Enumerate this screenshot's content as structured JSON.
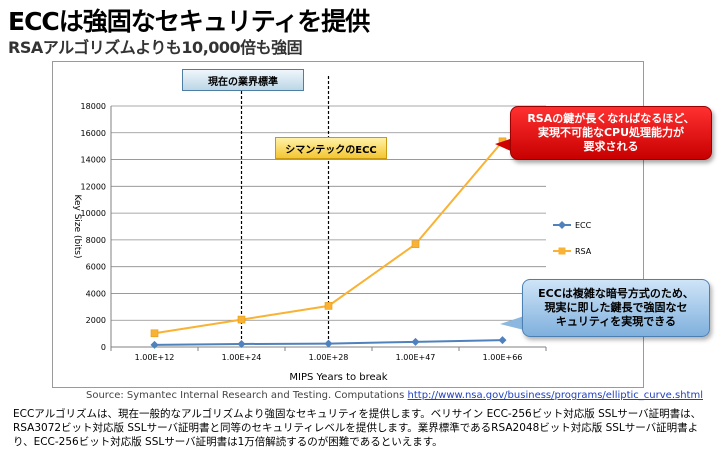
{
  "header": {
    "title": "ECCは強固なセキュリティを提供",
    "subtitle": "RSAアルゴリズムよりも10,000倍も強固"
  },
  "annotations": {
    "standard": "現在の業界標準",
    "symantec": "シマンテックのECC",
    "rsa_callout_line1": "RSAの鍵が長くなればなるほど、",
    "rsa_callout_line2": "実現不可能なCPU処理能力が",
    "rsa_callout_line3": "要求される",
    "ecc_callout_line1": "ECCは複雑な暗号方式のため、",
    "ecc_callout_line2": "現実に即した鍵長で強固なセ",
    "ecc_callout_line3": "キュリティを実現できる"
  },
  "source": {
    "prefix": "Source:  Symantec Internal Research and Testing.  Computations ",
    "link": "http://www.nsa.gov/business/programs/elliptic_curve.shtml"
  },
  "description": "ECCアルゴリズムは、現在一般的なアルゴリズムより強固なセキュリティを提供します。ベリサイン ECC-256ビット対応版  SSLサーバ証明書は、RSA3072ビット対応版 SSLサーバ証明書と同等のセキュリティレベルを提供します。業界標準であるRSA2048ビット対応版 SSLサーバ証明書より、ECC-256ビット対応版  SSLサーバ証明書は1万倍解読するのが困難であるといえます。",
  "colors": {
    "ecc": "#4f81bd",
    "rsa": "#f9b233"
  },
  "chart_data": {
    "type": "line",
    "categories": [
      "1.00E+12",
      "1.00E+24",
      "1.00E+28",
      "1.00E+47",
      "1.00E+66"
    ],
    "series": [
      {
        "name": "ECC",
        "values": [
          160,
          224,
          256,
          384,
          512
        ]
      },
      {
        "name": "RSA",
        "values": [
          1024,
          2048,
          3072,
          7680,
          15360
        ]
      }
    ],
    "title": "",
    "xlabel": "MIPS Years to break",
    "ylabel": "Key Size (bits)",
    "ylim": [
      0,
      18000
    ],
    "yticks": [
      0,
      2000,
      4000,
      6000,
      8000,
      10000,
      12000,
      14000,
      16000,
      18000
    ],
    "ytick_labels": [
      "0",
      "2000",
      "4000",
      "6000",
      "8000",
      "10000",
      "12000",
      "14000",
      "16000",
      "18000"
    ],
    "reference_lines": [
      "1.00E+24",
      "1.00E+28"
    ],
    "grid": true,
    "legend": "right"
  }
}
